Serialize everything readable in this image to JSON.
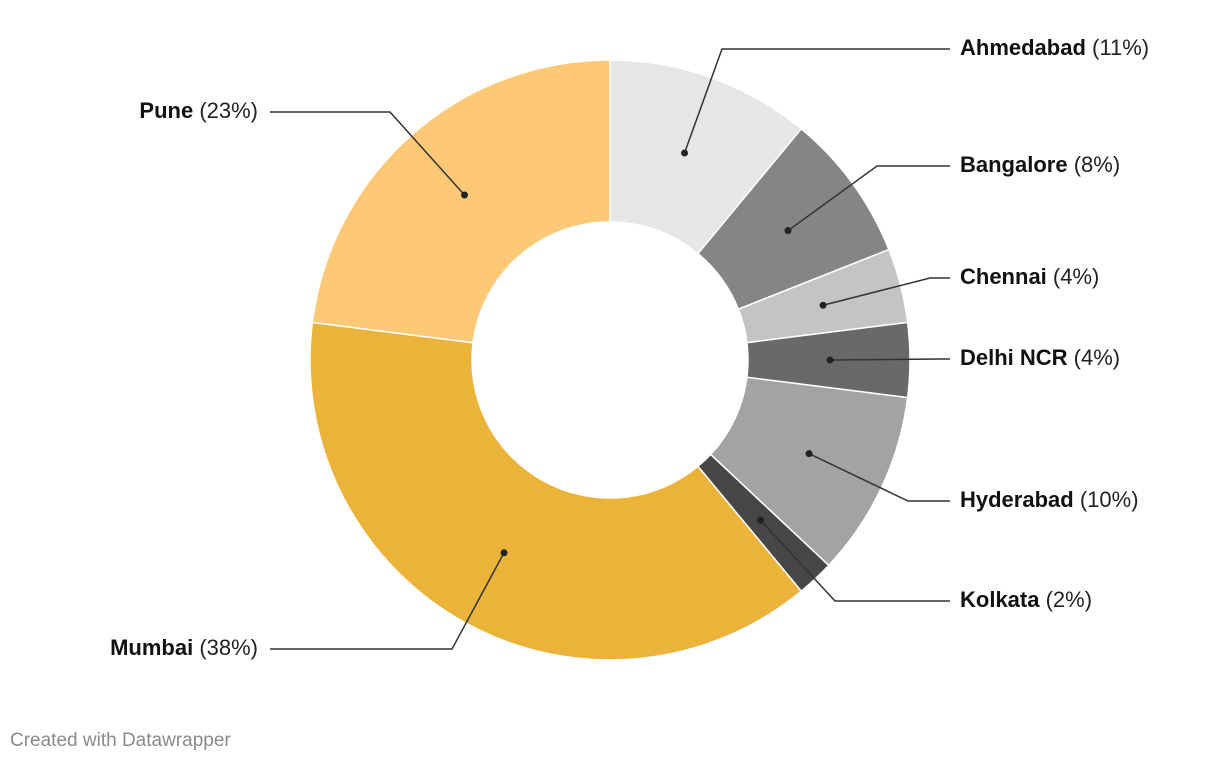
{
  "chart_data": {
    "type": "pie",
    "variant": "donut",
    "slices": [
      {
        "label": "Ahmedabad",
        "value": 11,
        "value_label": "(11%)",
        "color": "#e6e6e6"
      },
      {
        "label": "Bangalore",
        "value": 8,
        "value_label": "(8%)",
        "color": "#858585"
      },
      {
        "label": "Chennai",
        "value": 4,
        "value_label": "(4%)",
        "color": "#c4c4c4"
      },
      {
        "label": "Delhi NCR",
        "value": 4,
        "value_label": "(4%)",
        "color": "#696969"
      },
      {
        "label": "Hyderabad",
        "value": 10,
        "value_label": "(10%)",
        "color": "#a3a3a3"
      },
      {
        "label": "Kolkata",
        "value": 2,
        "value_label": "(2%)",
        "color": "#474747"
      },
      {
        "label": "Mumbai",
        "value": 38,
        "value_label": "(38%)",
        "color": "#ebb33a"
      },
      {
        "label": "Pune",
        "value": 23,
        "value_label": "(23%)",
        "color": "#fdc977"
      }
    ],
    "legend": "none"
  },
  "footer": {
    "credit": "Created with Datawrapper"
  }
}
